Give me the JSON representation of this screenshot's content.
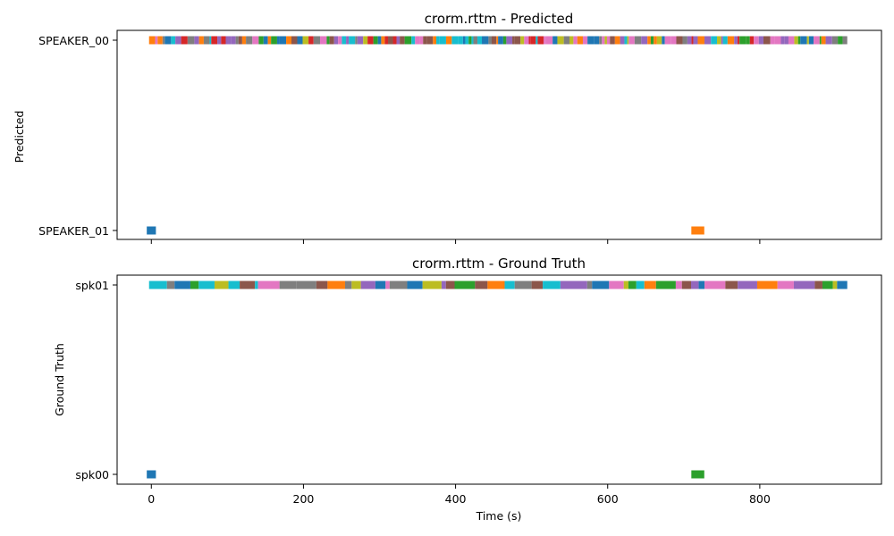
{
  "chart_data": [
    {
      "type": "timeline",
      "title": "crorm.rttm - Predicted",
      "ylabel": "Predicted",
      "xlabel": "",
      "xlim": [
        -45,
        960
      ],
      "xticks": [
        0,
        200,
        400,
        600,
        800
      ],
      "xtick_labels_visible": false,
      "categories": [
        "SPEAKER_01",
        "SPEAKER_00"
      ],
      "segments": [
        {
          "speaker": "SPEAKER_01",
          "start": -6,
          "end": 6,
          "color": "#1f77b4"
        },
        {
          "speaker": "SPEAKER_01",
          "start": 710,
          "end": 727,
          "color": "#ff7f0e"
        },
        {
          "speaker": "SPEAKER_00",
          "start": -3,
          "end": 915,
          "color": "multi"
        }
      ]
    },
    {
      "type": "timeline",
      "title": "crorm.rttm - Ground Truth",
      "ylabel": "Ground Truth",
      "xlabel": "Time (s)",
      "xlim": [
        -45,
        960
      ],
      "xticks": [
        0,
        200,
        400,
        600,
        800
      ],
      "xtick_labels": [
        "0",
        "200",
        "400",
        "600",
        "800"
      ],
      "categories": [
        "spk00",
        "spk01"
      ],
      "segments": [
        {
          "speaker": "spk00",
          "start": -6,
          "end": 6,
          "color": "#1f77b4"
        },
        {
          "speaker": "spk00",
          "start": 710,
          "end": 727,
          "color": "#2ca02c"
        },
        {
          "speaker": "spk01",
          "start": -3,
          "end": 915,
          "color": "multi"
        }
      ]
    }
  ],
  "palette": [
    "#1f77b4",
    "#ff7f0e",
    "#2ca02c",
    "#d62728",
    "#9467bd",
    "#8c564b",
    "#e377c2",
    "#7f7f7f",
    "#bcbd22",
    "#17becf"
  ]
}
